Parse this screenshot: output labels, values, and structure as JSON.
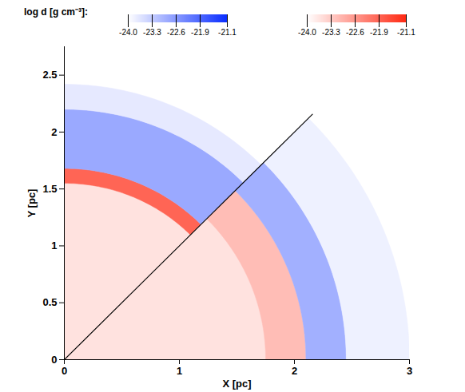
{
  "chart_data": {
    "type": "density_map",
    "xlabel": "X [pc]",
    "ylabel": "Y [pc]",
    "xlim": [
      0,
      3
    ],
    "ylim": [
      0,
      2.75
    ],
    "xticks": [
      0,
      1,
      2,
      3
    ],
    "yticks": [
      0,
      0.5,
      1,
      1.5,
      2,
      2.5
    ],
    "colorbar_label": "log d [g cm⁻³]:",
    "colorbars": [
      {
        "colors": [
          "#ffffff",
          "#0a2eff"
        ],
        "range": [
          -24.0,
          -21.1
        ],
        "ticks": [
          {
            "value": -24.0,
            "label": "-24.0"
          },
          -23.3,
          -22.6,
          -21.9,
          -21.1
        ]
      },
      {
        "colors": [
          "#ffffff",
          "#ff2a14"
        ],
        "range": [
          -24.0,
          -21.1
        ],
        "ticks": [
          {
            "value": -24.0,
            "label": "-24.0"
          },
          -23.3,
          -22.6,
          -21.9,
          -21.1
        ]
      }
    ],
    "regions": [
      {
        "r": [
          0,
          1.55
        ],
        "theta": [
          45,
          90
        ],
        "log_d": -23.6,
        "colorbar": 1
      },
      {
        "r": [
          1.55,
          1.68
        ],
        "theta": [
          45,
          90
        ],
        "log_d": -21.9,
        "colorbar": 1
      },
      {
        "r": [
          1.68,
          2.2
        ],
        "theta": [
          45,
          90
        ],
        "log_d": -22.8,
        "colorbar": 0
      },
      {
        "r": [
          2.2,
          2.42
        ],
        "theta": [
          45,
          90
        ],
        "log_d": -23.7,
        "colorbar": 0
      },
      {
        "r": [
          0,
          1.75
        ],
        "theta": [
          0,
          45
        ],
        "log_d": -23.6,
        "colorbar": 1
      },
      {
        "r": [
          1.75,
          2.1
        ],
        "theta": [
          0,
          45
        ],
        "log_d": -23.1,
        "colorbar": 1
      },
      {
        "r": [
          2.1,
          2.45
        ],
        "theta": [
          0,
          45
        ],
        "log_d": -22.9,
        "colorbar": 0
      },
      {
        "r": [
          2.45,
          3.0
        ],
        "theta": [
          0,
          45
        ],
        "log_d": -23.8,
        "colorbar": 0
      }
    ],
    "divider": {
      "theta": 45,
      "r": 3.05,
      "color": "#000000"
    }
  }
}
